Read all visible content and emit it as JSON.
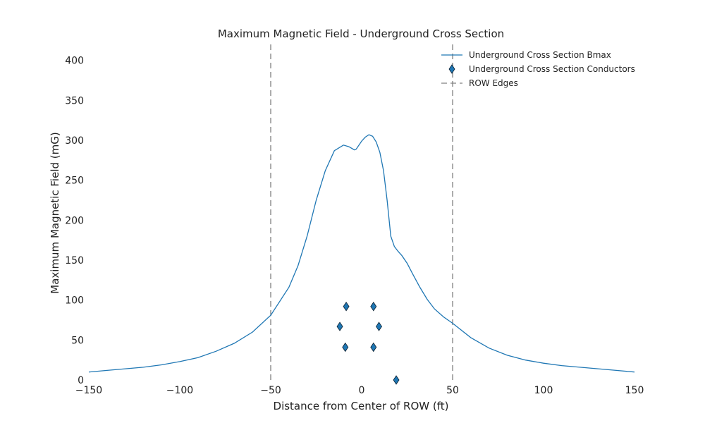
{
  "chart_data": {
    "type": "line",
    "title": "Maximum Magnetic Field - Underground Cross Section",
    "xlabel": "Distance from Center of ROW (ft)",
    "ylabel": "Maximum Magnetic Field (mG)",
    "xlim": [
      -150,
      150
    ],
    "ylim": [
      0,
      420
    ],
    "xticks": [
      -150,
      -100,
      -50,
      0,
      50,
      100,
      150
    ],
    "xtick_labels": [
      "−150",
      "−100",
      "−50",
      "0",
      "50",
      "100",
      "150"
    ],
    "yticks": [
      0,
      50,
      100,
      150,
      200,
      250,
      300,
      350,
      400
    ],
    "ytick_labels": [
      "0",
      "50",
      "100",
      "150",
      "200",
      "250",
      "300",
      "350",
      "400"
    ],
    "grid": false,
    "legend_position": "top-right",
    "series": [
      {
        "name": "Underground Cross Section Bmax",
        "kind": "line",
        "color": "#1f77b4",
        "x": [
          -150,
          -140,
          -130,
          -120,
          -110,
          -100,
          -90,
          -80,
          -70,
          -60,
          -50,
          -40,
          -35,
          -30,
          -25,
          -20,
          -15,
          -10,
          -7,
          -4,
          -3,
          0,
          2,
          4,
          6,
          8,
          10,
          12,
          14,
          16,
          18,
          20,
          22,
          25,
          28,
          32,
          36,
          40,
          45,
          50,
          60,
          70,
          80,
          90,
          100,
          110,
          120,
          130,
          140,
          150
        ],
        "y": [
          10,
          12,
          14,
          16,
          19,
          23,
          28,
          36,
          46,
          60,
          81,
          116,
          143,
          180,
          225,
          262,
          287,
          294,
          292,
          288,
          289,
          299,
          304,
          307,
          305,
          298,
          285,
          262,
          225,
          180,
          167,
          161,
          156,
          146,
          133,
          116,
          101,
          89,
          79,
          71,
          53,
          40,
          31,
          25,
          21,
          18,
          16,
          14,
          12,
          10
        ]
      },
      {
        "name": "Underground Cross Section Conductors",
        "kind": "scatter",
        "marker": "diamond",
        "color": "#1f77b4",
        "x": [
          -8.5,
          6.5,
          -12,
          9.5,
          -9,
          6.5,
          19
        ],
        "y": [
          92,
          92,
          67,
          67,
          41,
          41,
          0
        ]
      },
      {
        "name": "ROW Edges",
        "kind": "vline",
        "color": "#808080",
        "x": [
          -50,
          50
        ]
      }
    ]
  }
}
